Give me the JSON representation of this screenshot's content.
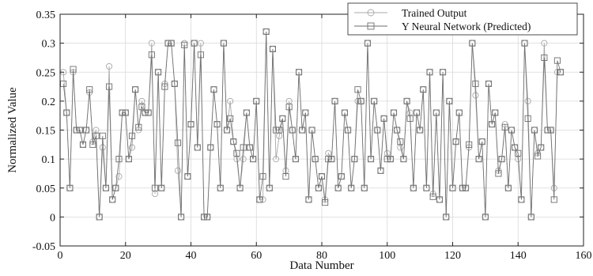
{
  "chart_data": {
    "type": "line",
    "xlabel": "Data Number",
    "ylabel": "Normalized Value",
    "xlim": [
      0,
      160
    ],
    "ylim": [
      -0.05,
      0.35
    ],
    "xticks": [
      0,
      20,
      40,
      60,
      80,
      100,
      120,
      140,
      160
    ],
    "yticks": [
      -0.05,
      0,
      0.05,
      0.1,
      0.15,
      0.2,
      0.25,
      0.3,
      0.35
    ],
    "ytick_labels": [
      "-0.05",
      "0",
      "0.05",
      "0.1",
      "0.15",
      "0.2",
      "0.25",
      "0.3",
      "0.35"
    ],
    "grid": true,
    "legend_position": "top-right",
    "series": [
      {
        "name": "Trained Output",
        "marker": "circle",
        "color": "#a8a8a8",
        "values": [
          0.25,
          0.18,
          0.05,
          0.25,
          0.15,
          0.15,
          0.125,
          0.15,
          0.215,
          0.13,
          0.15,
          0.0,
          0.12,
          0.05,
          0.26,
          0.03,
          0.05,
          0.07,
          0.18,
          0.18,
          0.1,
          0.12,
          0.22,
          0.15,
          0.2,
          0.18,
          0.18,
          0.3,
          0.04,
          0.25,
          0.05,
          0.23,
          0.3,
          0.3,
          0.23,
          0.08,
          0.0,
          0.3,
          0.07,
          0.16,
          0.3,
          0.12,
          0.3,
          0.0,
          0.0,
          0.12,
          0.22,
          0.16,
          0.05,
          0.3,
          0.15,
          0.2,
          0.13,
          0.1,
          0.05,
          0.1,
          0.18,
          0.12,
          0.1,
          0.2,
          0.03,
          0.03,
          0.32,
          0.05,
          0.29,
          0.1,
          0.14,
          0.17,
          0.08,
          0.2,
          0.15,
          0.1,
          0.25,
          0.15,
          0.18,
          0.03,
          0.15,
          0.1,
          0.05,
          0.07,
          0.03,
          0.11,
          0.1,
          0.2,
          0.05,
          0.07,
          0.18,
          0.15,
          0.05,
          0.1,
          0.2,
          0.2,
          0.05,
          0.3,
          0.1,
          0.2,
          0.15,
          0.08,
          0.17,
          0.11,
          0.1,
          0.18,
          0.15,
          0.12,
          0.1,
          0.2,
          0.18,
          0.05,
          0.18,
          0.15,
          0.22,
          0.05,
          0.25,
          0.04,
          0.18,
          0.03,
          0.25,
          0.0,
          0.2,
          0.05,
          0.13,
          0.18,
          0.05,
          0.05,
          0.12,
          0.3,
          0.21,
          0.1,
          0.13,
          0.0,
          0.23,
          0.16,
          0.18,
          0.08,
          0.1,
          0.16,
          0.05,
          0.15,
          0.12,
          0.1,
          0.03,
          0.3,
          0.2,
          0.0,
          0.15,
          0.11,
          0.12,
          0.3,
          0.15,
          0.15,
          0.05,
          0.25,
          0.25
        ]
      },
      {
        "name": "Y Neural Network (Predicted)",
        "marker": "square",
        "color": "#6e6e6e",
        "values": [
          0.23,
          0.18,
          0.05,
          0.255,
          0.15,
          0.15,
          0.125,
          0.15,
          0.22,
          0.125,
          0.14,
          0.0,
          0.14,
          0.05,
          0.225,
          0.03,
          0.05,
          0.1,
          0.18,
          0.18,
          0.1,
          0.14,
          0.22,
          0.155,
          0.19,
          0.18,
          0.18,
          0.28,
          0.05,
          0.25,
          0.05,
          0.225,
          0.3,
          0.3,
          0.23,
          0.128,
          0.0,
          0.297,
          0.07,
          0.16,
          0.3,
          0.12,
          0.28,
          0.0,
          0.0,
          0.12,
          0.22,
          0.16,
          0.05,
          0.3,
          0.15,
          0.17,
          0.13,
          0.11,
          0.05,
          0.12,
          0.18,
          0.12,
          0.1,
          0.2,
          0.03,
          0.07,
          0.32,
          0.05,
          0.29,
          0.15,
          0.15,
          0.17,
          0.07,
          0.19,
          0.15,
          0.1,
          0.25,
          0.15,
          0.18,
          0.03,
          0.15,
          0.1,
          0.05,
          0.07,
          0.025,
          0.1,
          0.1,
          0.2,
          0.05,
          0.07,
          0.18,
          0.15,
          0.05,
          0.1,
          0.22,
          0.2,
          0.05,
          0.3,
          0.1,
          0.2,
          0.15,
          0.08,
          0.17,
          0.1,
          0.1,
          0.18,
          0.15,
          0.13,
          0.1,
          0.2,
          0.17,
          0.05,
          0.18,
          0.15,
          0.22,
          0.05,
          0.25,
          0.035,
          0.18,
          0.03,
          0.25,
          0.0,
          0.2,
          0.05,
          0.13,
          0.18,
          0.05,
          0.05,
          0.125,
          0.3,
          0.23,
          0.1,
          0.13,
          0.0,
          0.23,
          0.16,
          0.18,
          0.075,
          0.1,
          0.155,
          0.05,
          0.15,
          0.12,
          0.11,
          0.03,
          0.3,
          0.17,
          0.0,
          0.15,
          0.105,
          0.12,
          0.275,
          0.15,
          0.15,
          0.03,
          0.27,
          0.25
        ]
      }
    ]
  },
  "colors": {
    "gridline": "#d9d9d9",
    "axes": "#222222"
  }
}
